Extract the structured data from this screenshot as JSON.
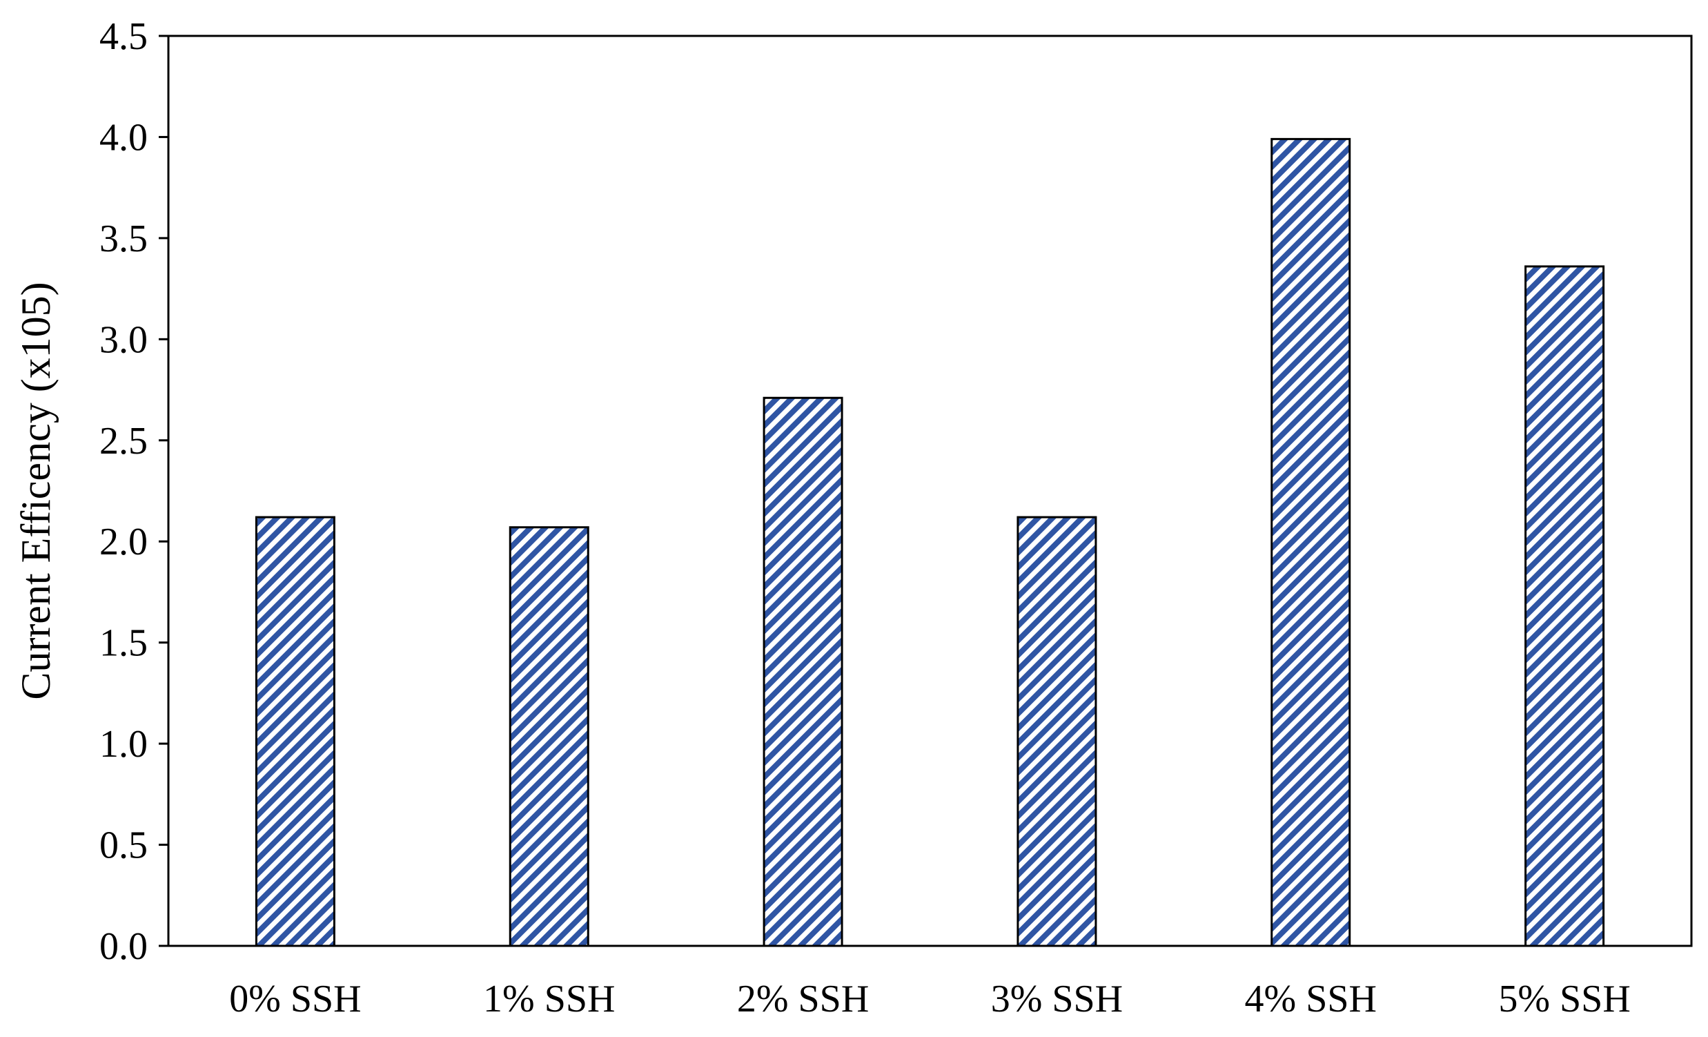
{
  "chart_data": {
    "type": "bar",
    "categories": [
      "0% SSH",
      "1% SSH",
      "2% SSH",
      "3% SSH",
      "4% SSH",
      "5% SSH"
    ],
    "values": [
      2.12,
      2.07,
      2.71,
      2.12,
      3.99,
      3.36
    ],
    "ylabel": "Current Efficency (x105)",
    "xlabel": "",
    "ylim": [
      0,
      4.5
    ],
    "yticks": [
      "0.0",
      "0.5",
      "1.0",
      "1.5",
      "2.0",
      "2.5",
      "3.0",
      "3.5",
      "4.0",
      "4.5"
    ],
    "grid": false,
    "bar_fill": "#2f55a4",
    "bar_pattern": "diagonal-stripes",
    "bar_stroke": "#000000"
  }
}
